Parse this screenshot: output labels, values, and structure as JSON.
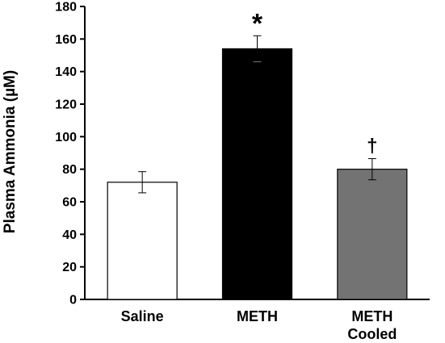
{
  "chart_data": {
    "type": "bar",
    "title": "",
    "xlabel": "",
    "ylabel": "Plasma Ammonia (µM)",
    "ylim": [
      0,
      180
    ],
    "yticks": [
      0,
      20,
      40,
      60,
      80,
      100,
      120,
      140,
      160,
      180
    ],
    "grid": false,
    "categories": [
      {
        "lines": [
          "Saline"
        ]
      },
      {
        "lines": [
          "METH"
        ]
      },
      {
        "lines": [
          "METH",
          "Cooled"
        ]
      }
    ],
    "values": [
      72,
      154,
      80
    ],
    "errors": [
      6.5,
      8,
      6.5
    ],
    "bar_colors": [
      "#ffffff",
      "#000000",
      "#737373"
    ],
    "bar_edge_color": "#000000",
    "annotations": [
      "",
      "*",
      "†"
    ]
  }
}
